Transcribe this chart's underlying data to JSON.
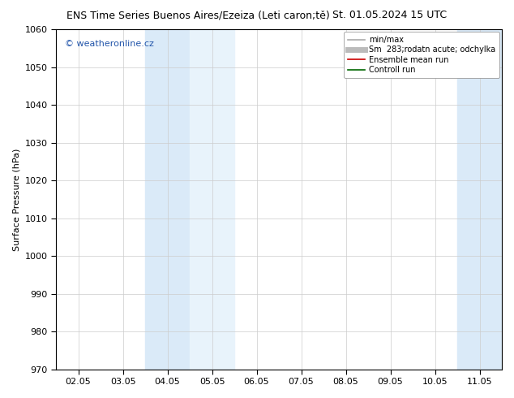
{
  "title_left": "ENS Time Series Buenos Aires/Ezeiza (Leti caron;tě)",
  "title_right": "St. 01.05.2024 15 UTC",
  "ylabel": "Surface Pressure (hPa)",
  "ylim": [
    970,
    1060
  ],
  "yticks": [
    970,
    980,
    990,
    1000,
    1010,
    1020,
    1030,
    1040,
    1050,
    1060
  ],
  "xtick_labels": [
    "02.05",
    "03.05",
    "04.05",
    "05.05",
    "06.05",
    "07.05",
    "08.05",
    "09.05",
    "10.05",
    "11.05"
  ],
  "shaded_bands": [
    {
      "xmin": 2,
      "xmax": 3,
      "color": "#daeaf8"
    },
    {
      "xmin": 3,
      "xmax": 4,
      "color": "#e8f3fb"
    },
    {
      "xmin": 9,
      "xmax": 10,
      "color": "#daeaf8"
    }
  ],
  "watermark": "© weatheronline.cz",
  "watermark_color": "#2255aa",
  "legend_entries": [
    {
      "label": "min/max",
      "color": "#aaaaaa",
      "lw": 1.2
    },
    {
      "label": "Sm  283;rodatn acute; odchylka",
      "color": "#bbbbbb",
      "lw": 5
    },
    {
      "label": "Ensemble mean run",
      "color": "#cc0000",
      "lw": 1.2
    },
    {
      "label": "Controll run",
      "color": "#006600",
      "lw": 1.2
    }
  ],
  "bg_color": "#ffffff",
  "grid_color": "#cccccc",
  "border_color": "#000000",
  "tick_color": "#000000",
  "title_fontsize": 9,
  "ylabel_fontsize": 8,
  "tick_fontsize": 8
}
